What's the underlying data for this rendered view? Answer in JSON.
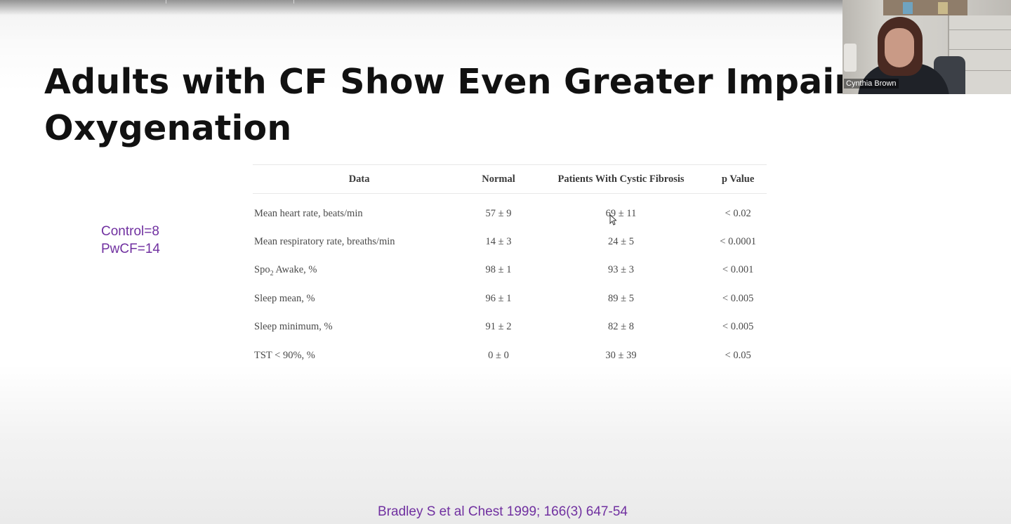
{
  "slide": {
    "title_lines": [
      "Adults with CF Show Even Greater Impairment in",
      "Oxygenation"
    ],
    "counts": {
      "control": "Control=8",
      "pwcf": "PwCF=14"
    },
    "citation": "Bradley S et al Chest 1999; 166(3) 647-54"
  },
  "table": {
    "headers": [
      "Data",
      "Normal",
      "Patients With Cystic Fibrosis",
      "p Value"
    ],
    "rows": [
      {
        "data": "Mean heart rate, beats/min",
        "normal": "57 ± 9",
        "cf": "69 ± 11",
        "p": "< 0.02"
      },
      {
        "data": "Mean respiratory rate, breaths/min",
        "normal": "14 ± 3",
        "cf": "24 ± 5",
        "p": "< 0.0001"
      },
      {
        "data_prefix": "Spo",
        "data_sub": "2",
        "data_suffix": " Awake, %",
        "normal": "98 ± 1",
        "cf": "93 ± 3",
        "p": "< 0.001"
      },
      {
        "data": "Sleep mean, %",
        "normal": "96 ± 1",
        "cf": "89 ± 5",
        "p": "< 0.005"
      },
      {
        "data": "Sleep minimum, %",
        "normal": "91 ± 2",
        "cf": "82 ± 8",
        "p": "< 0.005"
      },
      {
        "data": "TST < 90%, %",
        "normal": "0 ± 0",
        "cf": "30 ± 39",
        "p": "< 0.05"
      }
    ]
  },
  "video": {
    "participant_name": "Cynthia Brown"
  },
  "colors": {
    "title": "#111111",
    "accent_purple": "#7030a0",
    "table_text": "#4a4a4a"
  },
  "icons": {
    "cursor": "mouse-pointer-icon"
  }
}
